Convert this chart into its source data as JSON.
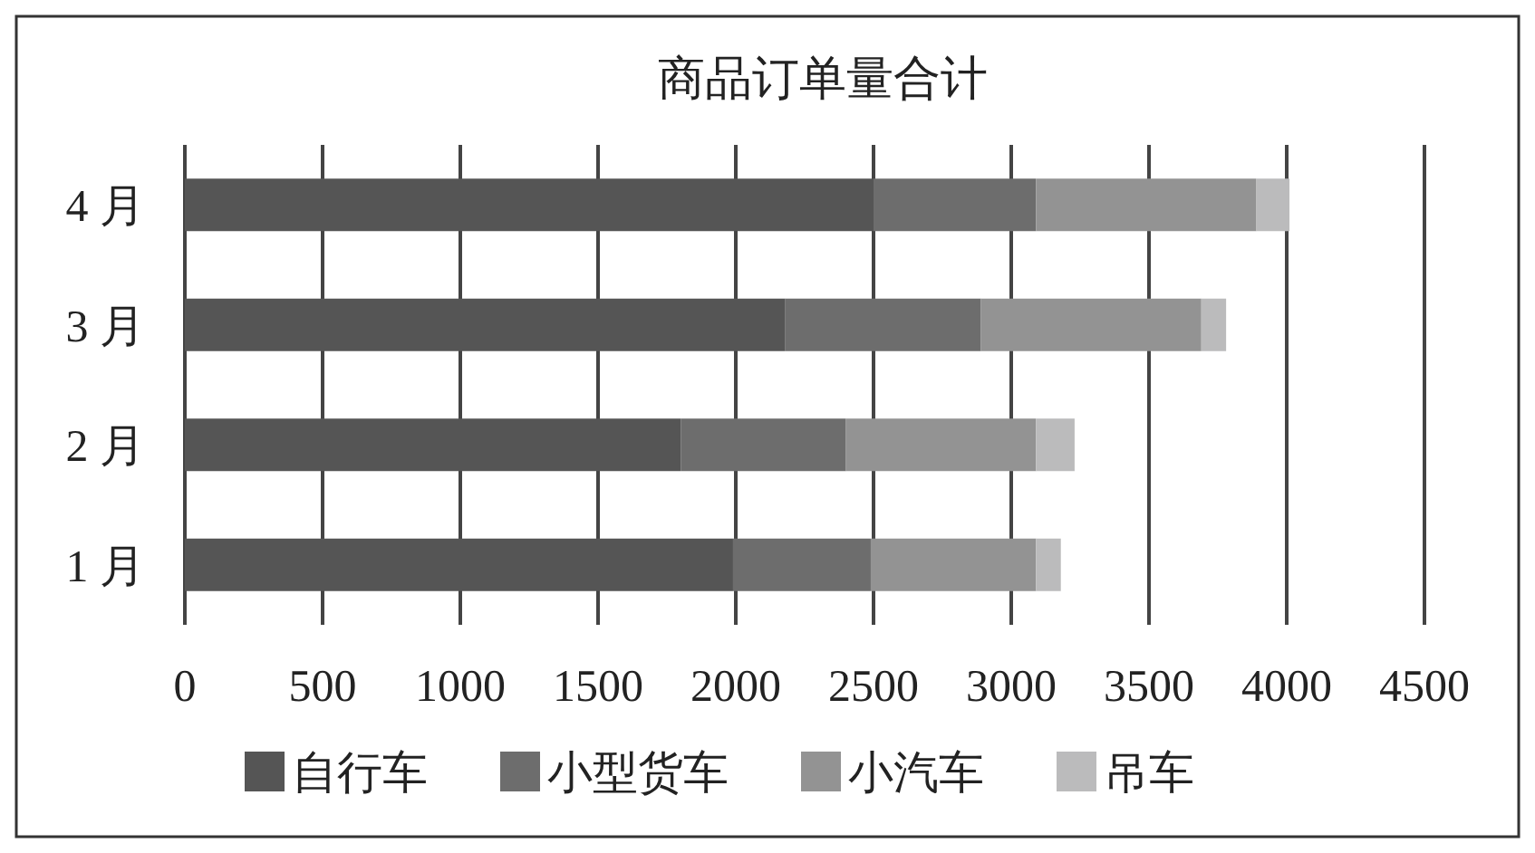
{
  "chart_data": {
    "type": "bar",
    "title": "商品订单量合计",
    "orientation": "horizontal",
    "stacked": true,
    "categories": [
      "4 月",
      "3 月",
      "2 月",
      "1 月"
    ],
    "series": [
      {
        "name": "自行车",
        "color": "#555555",
        "values": [
          2500,
          2180,
          1800,
          1990
        ]
      },
      {
        "name": "小型货车",
        "color": "#6d6d6d",
        "values": [
          590,
          710,
          600,
          500
        ]
      },
      {
        "name": "小汽车",
        "color": "#939393",
        "values": [
          800,
          800,
          690,
          600
        ]
      },
      {
        "name": "吊车",
        "color": "#bbbbbc",
        "values": [
          120,
          90,
          140,
          90
        ]
      }
    ],
    "xlim": [
      0,
      4500
    ],
    "xticks": [
      0,
      500,
      1000,
      1500,
      2000,
      2500,
      3000,
      3500,
      4000,
      4500
    ],
    "grid": "x",
    "legend": "bottom"
  }
}
